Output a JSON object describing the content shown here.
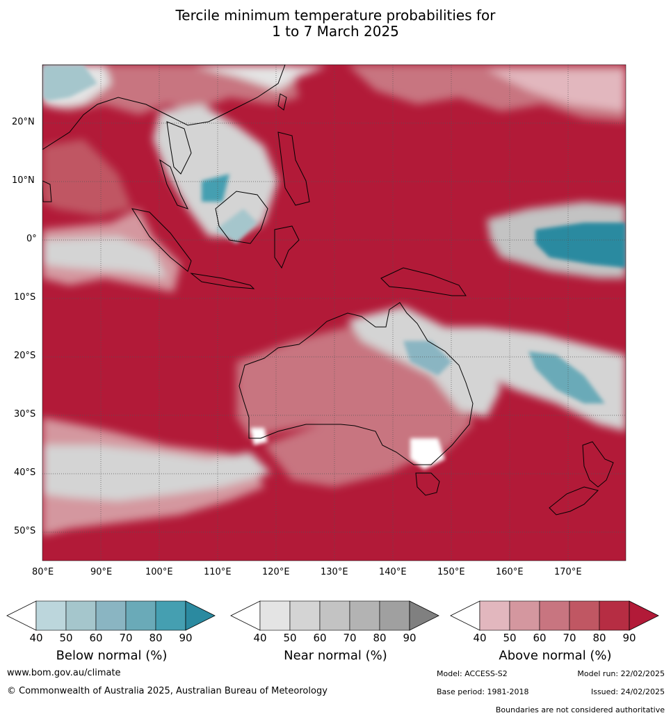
{
  "title": {
    "line1": "Tercile minimum temperature probabilities for",
    "line2": "1 to 7 March 2025"
  },
  "map": {
    "lon_labels": [
      "80°E",
      "90°E",
      "100°E",
      "110°E",
      "120°E",
      "130°E",
      "140°E",
      "150°E",
      "160°E",
      "170°E"
    ],
    "lat_labels": [
      "20°N",
      "10°N",
      "0°",
      "10°S",
      "20°S",
      "30°S",
      "40°S",
      "50°S"
    ],
    "lon_range": [
      80,
      180
    ],
    "lat_range": [
      -55,
      30
    ],
    "gridlines": true
  },
  "colorbars": {
    "below": {
      "label": "Below normal (%)",
      "ticks": [
        "40",
        "50",
        "60",
        "70",
        "80",
        "90"
      ],
      "colors": [
        "#ffffff",
        "#bcd6dc",
        "#a5c6cc",
        "#8ab5c2",
        "#6aaab8",
        "#459fb1",
        "#2b8aa0"
      ]
    },
    "near": {
      "label": "Near normal (%)",
      "ticks": [
        "40",
        "50",
        "60",
        "70",
        "80",
        "90"
      ],
      "colors": [
        "#ffffff",
        "#e4e4e4",
        "#d4d4d4",
        "#c3c3c3",
        "#b3b3b3",
        "#a0a0a0",
        "#808080"
      ]
    },
    "above": {
      "label": "Above normal (%)",
      "ticks": [
        "40",
        "50",
        "60",
        "70",
        "80",
        "90"
      ],
      "colors": [
        "#ffffff",
        "#e2b7be",
        "#d4979f",
        "#c87580",
        "#c05763",
        "#b62d43",
        "#b21a38"
      ]
    }
  },
  "footer": {
    "website": "www.bom.gov.au/climate",
    "copyright": "© Commonwealth of Australia 2025, Australian Bureau of Meteorology",
    "model": "Model: ACCESS-S2",
    "model_run": "Model run: 22/02/2025",
    "base_period": "Base period: 1981-2018",
    "issued": "Issued: 24/02/2025",
    "disclaimer": "Boundaries are not considered authoritative"
  }
}
